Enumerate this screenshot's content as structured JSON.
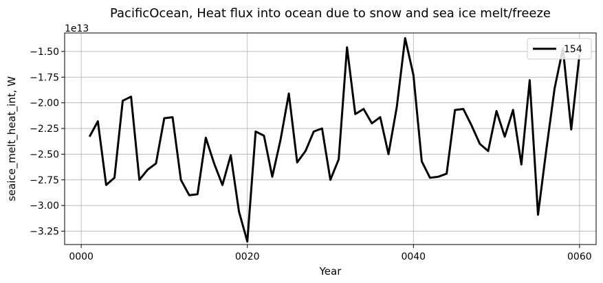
{
  "chart_data": {
    "type": "line",
    "title": "PacificOcean, Heat flux into ocean due to snow and sea ice melt/freeze",
    "xlabel": "Year",
    "ylabel": "seaice_melt_heat_int, W",
    "offset_label": "1e13",
    "xlim": [
      -2,
      62
    ],
    "ylim": [
      -3.38,
      -1.32
    ],
    "x_ticks": [
      0,
      20,
      40,
      60
    ],
    "x_tick_labels": [
      "0000",
      "0020",
      "0040",
      "0060"
    ],
    "y_ticks": [
      -3.25,
      -3.0,
      -2.75,
      -2.5,
      -2.25,
      -2.0,
      -1.75,
      -1.5
    ],
    "y_tick_labels": [
      "−3.25",
      "−3.00",
      "−2.75",
      "−2.50",
      "−2.25",
      "−2.00",
      "−1.75",
      "−1.50"
    ],
    "grid": true,
    "legend_position": "top-right",
    "series": [
      {
        "name": "154",
        "color": "#000000",
        "x": [
          1,
          2,
          3,
          4,
          5,
          6,
          7,
          8,
          9,
          10,
          11,
          12,
          13,
          14,
          15,
          16,
          17,
          18,
          19,
          20,
          21,
          22,
          23,
          24,
          25,
          26,
          27,
          28,
          29,
          30,
          31,
          32,
          33,
          34,
          35,
          36,
          37,
          38,
          39,
          40,
          41,
          42,
          43,
          44,
          45,
          46,
          47,
          48,
          49,
          50,
          51,
          52,
          53,
          54,
          55,
          56,
          57,
          58,
          59,
          60
        ],
        "values": [
          -2.33,
          -2.18,
          -2.8,
          -2.73,
          -1.98,
          -1.94,
          -2.75,
          -2.65,
          -2.59,
          -2.15,
          -2.14,
          -2.75,
          -2.9,
          -2.89,
          -2.34,
          -2.59,
          -2.8,
          -2.51,
          -3.06,
          -3.35,
          -2.28,
          -2.32,
          -2.72,
          -2.36,
          -1.91,
          -2.58,
          -2.47,
          -2.28,
          -2.25,
          -2.75,
          -2.55,
          -1.46,
          -2.11,
          -2.06,
          -2.2,
          -2.14,
          -2.5,
          -2.04,
          -1.37,
          -1.73,
          -2.57,
          -2.73,
          -2.72,
          -2.69,
          -2.07,
          -2.06,
          -2.22,
          -2.4,
          -2.47,
          -2.08,
          -2.33,
          -2.07,
          -2.6,
          -1.78,
          -3.09,
          -2.46,
          -1.86,
          -1.47,
          -2.26,
          -1.53
        ]
      }
    ]
  }
}
